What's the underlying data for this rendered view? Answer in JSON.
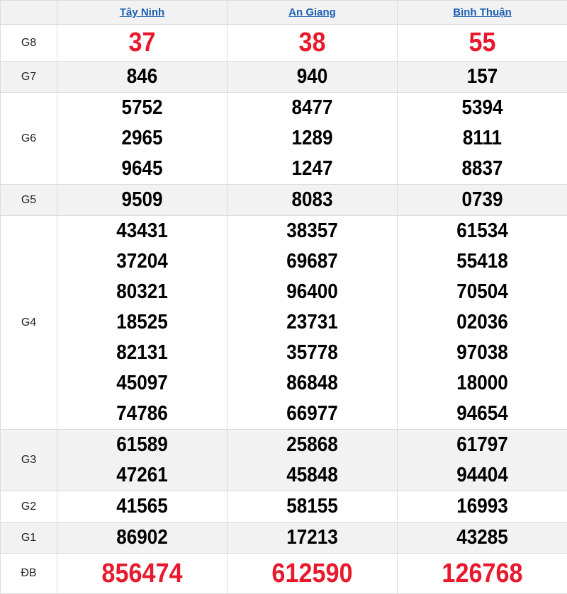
{
  "provinces": [
    "Tây Ninh",
    "An Giang",
    "Bình Thuận"
  ],
  "colors": {
    "highlight": "#e8192c",
    "link": "#1a5fb4",
    "alt_row": "#f2f2f2"
  },
  "prizes": [
    {
      "label": "G8",
      "values": [
        [
          "37"
        ],
        [
          "38"
        ],
        [
          "55"
        ]
      ]
    },
    {
      "label": "G7",
      "values": [
        [
          "846"
        ],
        [
          "940"
        ],
        [
          "157"
        ]
      ]
    },
    {
      "label": "G6",
      "values": [
        [
          "5752",
          "2965",
          "9645"
        ],
        [
          "8477",
          "1289",
          "1247"
        ],
        [
          "5394",
          "8111",
          "8837"
        ]
      ]
    },
    {
      "label": "G5",
      "values": [
        [
          "9509"
        ],
        [
          "8083"
        ],
        [
          "0739"
        ]
      ]
    },
    {
      "label": "G4",
      "values": [
        [
          "43431",
          "37204",
          "80321",
          "18525",
          "82131",
          "45097",
          "74786"
        ],
        [
          "38357",
          "69687",
          "96400",
          "23731",
          "35778",
          "86848",
          "66977"
        ],
        [
          "61534",
          "55418",
          "70504",
          "02036",
          "97038",
          "18000",
          "94654"
        ]
      ]
    },
    {
      "label": "G3",
      "values": [
        [
          "61589",
          "47261"
        ],
        [
          "25868",
          "45848"
        ],
        [
          "61797",
          "94404"
        ]
      ]
    },
    {
      "label": "G2",
      "values": [
        [
          "41565"
        ],
        [
          "58155"
        ],
        [
          "16993"
        ]
      ]
    },
    {
      "label": "G1",
      "values": [
        [
          "86902"
        ],
        [
          "17213"
        ],
        [
          "43285"
        ]
      ]
    },
    {
      "label": "ĐB",
      "values": [
        [
          "856474"
        ],
        [
          "612590"
        ],
        [
          "126768"
        ]
      ]
    }
  ]
}
